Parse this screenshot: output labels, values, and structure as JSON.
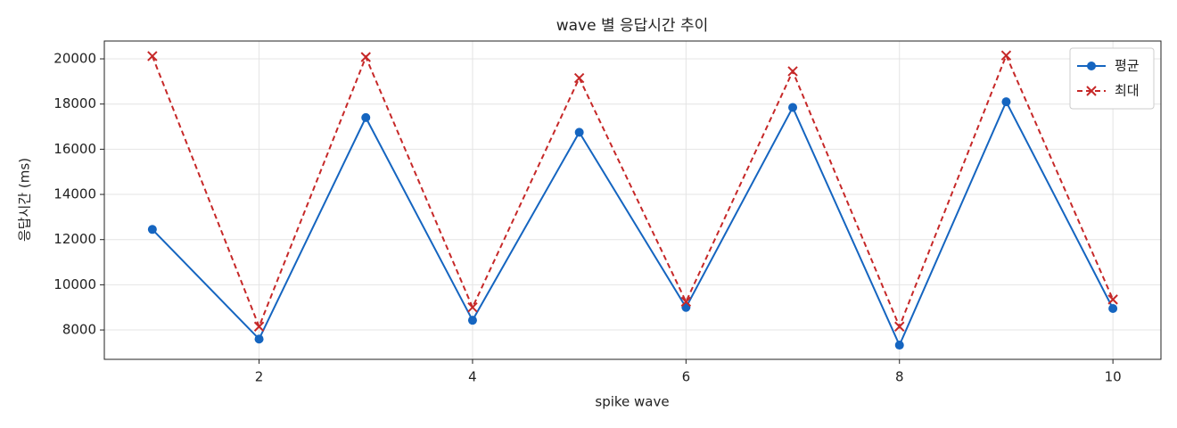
{
  "chart_data": {
    "type": "line",
    "title": "wave 별 응답시간 추이",
    "x_label": "spike wave",
    "y_label": "응답시간 (ms)",
    "x": [
      1,
      2,
      3,
      4,
      5,
      6,
      7,
      8,
      9,
      10
    ],
    "series": [
      {
        "name": "평균",
        "color": "#1565c0",
        "marker": "circle",
        "dash": false,
        "values": [
          12450,
          7600,
          17400,
          8430,
          16750,
          9000,
          17850,
          7330,
          18100,
          8950
        ]
      },
      {
        "name": "최대",
        "color": "#c62828",
        "marker": "x",
        "dash": true,
        "values": [
          20120,
          8150,
          20080,
          9000,
          19150,
          9250,
          19450,
          8150,
          20150,
          9350
        ]
      }
    ],
    "xlim": [
      0.55,
      10.45
    ],
    "ylim": [
      6700,
      20790
    ],
    "xticks": [
      2,
      4,
      6,
      8,
      10
    ],
    "yticks": [
      8000,
      10000,
      12000,
      14000,
      16000,
      18000,
      20000
    ],
    "grid": true,
    "legend": "upper-right"
  }
}
